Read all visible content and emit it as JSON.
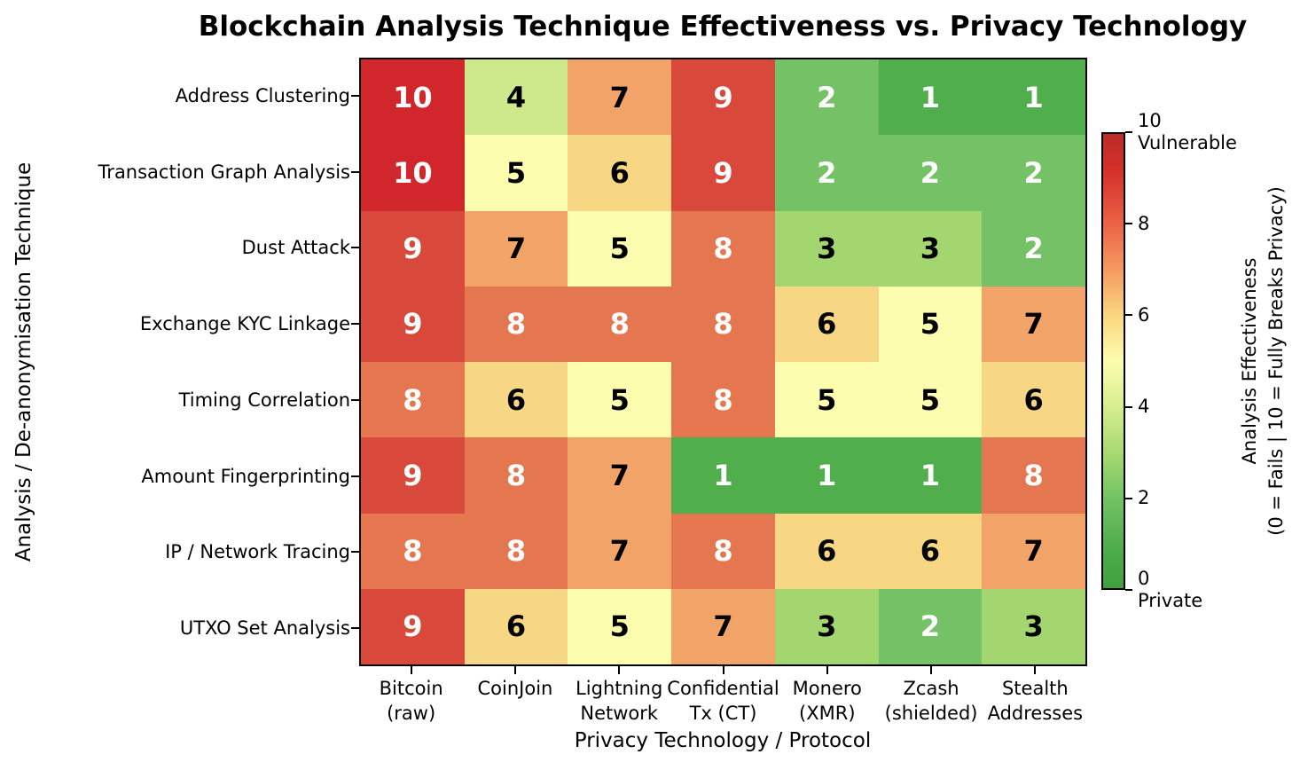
{
  "chart_data": {
    "type": "heatmap",
    "title": "Blockchain Analysis Technique Effectiveness vs. Privacy Technology",
    "xlabel": "Privacy Technology / Protocol",
    "ylabel": "Analysis / De-anonymisation Technique",
    "x_categories": [
      "Bitcoin\n(raw)",
      "CoinJoin",
      "Lightning\nNetwork",
      "Confidential\nTx (CT)",
      "Monero\n(XMR)",
      "Zcash\n(shielded)",
      "Stealth\nAddresses"
    ],
    "y_categories": [
      "Address Clustering",
      "Transaction Graph Analysis",
      "Dust Attack",
      "Exchange KYC Linkage",
      "Timing Correlation",
      "Amount Fingerprinting",
      "IP / Network Tracing",
      "UTXO Set Analysis"
    ],
    "values": [
      [
        10,
        4,
        7,
        9,
        2,
        1,
        1
      ],
      [
        10,
        5,
        6,
        9,
        2,
        2,
        2
      ],
      [
        9,
        7,
        5,
        8,
        3,
        3,
        2
      ],
      [
        9,
        8,
        8,
        8,
        6,
        5,
        7
      ],
      [
        8,
        6,
        5,
        8,
        5,
        5,
        6
      ],
      [
        9,
        8,
        7,
        1,
        1,
        1,
        8
      ],
      [
        8,
        8,
        7,
        8,
        6,
        6,
        7
      ],
      [
        9,
        6,
        5,
        7,
        3,
        2,
        3
      ]
    ],
    "vmin": 0,
    "vmax": 10,
    "value_colors": {
      "1": "#50ae4d",
      "2": "#75c266",
      "3": "#a4d66f",
      "4": "#cde98c",
      "5": "#fdfdb0",
      "6": "#f8d784",
      "7": "#f2a468",
      "8": "#e4774f",
      "9": "#d8483b",
      "10": "#d1262c"
    },
    "cell_text_white_if_gte": 8,
    "cell_text_white_if_lte": 2,
    "cell_text_white": "#ffffff",
    "cell_text_black": "#000000",
    "colorbar": {
      "ticks": [
        {
          "value": 10,
          "label": "10\nVulnerable"
        },
        {
          "value": 8,
          "label": "8"
        },
        {
          "value": 6,
          "label": "6"
        },
        {
          "value": 4,
          "label": "4"
        },
        {
          "value": 2,
          "label": "2"
        },
        {
          "value": 0,
          "label": "0\nPrivate"
        }
      ],
      "label": "Analysis Effectiveness\n(0 = Fails | 10 = Fully Breaks Privacy)",
      "gradient_stops": [
        "#bc2b28 0%",
        "#d43029 8%",
        "#eb6346 20%",
        "#f59a60 30%",
        "#fad77f 40%",
        "#fdfdae 50%",
        "#d7ee8e 60%",
        "#a8da70 70%",
        "#74c365 80%",
        "#4cab4a 92%",
        "#3fa23e 100%"
      ]
    }
  }
}
